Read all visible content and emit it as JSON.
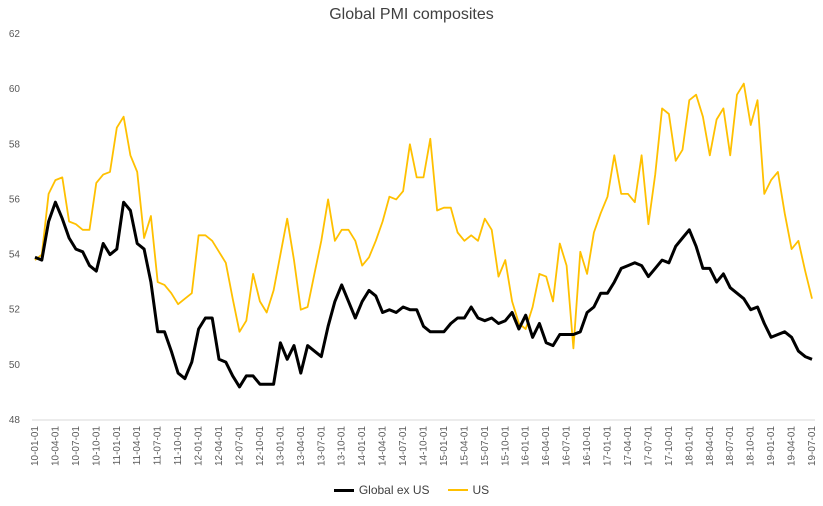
{
  "chart_data": {
    "type": "line",
    "title": "Global PMI composites",
    "xlabel": "",
    "ylabel": "",
    "ylim": [
      48,
      62
    ],
    "yticks": [
      48,
      50,
      52,
      54,
      56,
      58,
      60,
      62
    ],
    "grid": false,
    "legend_position": "bottom",
    "x": [
      "10-01-01",
      "10-02-01",
      "10-03-01",
      "10-04-01",
      "10-05-01",
      "10-06-01",
      "10-07-01",
      "10-08-01",
      "10-09-01",
      "10-10-01",
      "10-11-01",
      "10-12-01",
      "11-01-01",
      "11-02-01",
      "11-03-01",
      "11-04-01",
      "11-05-01",
      "11-06-01",
      "11-07-01",
      "11-08-01",
      "11-09-01",
      "11-10-01",
      "11-11-01",
      "11-12-01",
      "12-01-01",
      "12-02-01",
      "12-03-01",
      "12-04-01",
      "12-05-01",
      "12-06-01",
      "12-07-01",
      "12-08-01",
      "12-09-01",
      "12-10-01",
      "12-11-01",
      "12-12-01",
      "13-01-01",
      "13-02-01",
      "13-03-01",
      "13-04-01",
      "13-05-01",
      "13-06-01",
      "13-07-01",
      "13-08-01",
      "13-09-01",
      "13-10-01",
      "13-11-01",
      "13-12-01",
      "14-01-01",
      "14-02-01",
      "14-03-01",
      "14-04-01",
      "14-05-01",
      "14-06-01",
      "14-07-01",
      "14-08-01",
      "14-09-01",
      "14-10-01",
      "14-11-01",
      "14-12-01",
      "15-01-01",
      "15-02-01",
      "15-03-01",
      "15-04-01",
      "15-05-01",
      "15-06-01",
      "15-07-01",
      "15-08-01",
      "15-09-01",
      "15-10-01",
      "15-11-01",
      "15-12-01",
      "16-01-01",
      "16-02-01",
      "16-03-01",
      "16-04-01",
      "16-05-01",
      "16-06-01",
      "16-07-01",
      "16-08-01",
      "16-09-01",
      "16-10-01",
      "16-11-01",
      "16-12-01",
      "17-01-01",
      "17-02-01",
      "17-03-01",
      "17-04-01",
      "17-05-01",
      "17-06-01",
      "17-07-01",
      "17-08-01",
      "17-09-01",
      "17-10-01",
      "17-11-01",
      "17-12-01",
      "18-01-01",
      "18-02-01",
      "18-03-01",
      "18-04-01",
      "18-05-01",
      "18-06-01",
      "18-07-01",
      "18-08-01",
      "18-09-01",
      "18-10-01",
      "18-11-01",
      "18-12-01",
      "19-01-01",
      "19-02-01",
      "19-03-01",
      "19-04-01",
      "19-05-01",
      "19-06-01",
      "19-07-01"
    ],
    "xtick_labels": [
      "10-01-01",
      "10-04-01",
      "10-07-01",
      "10-10-01",
      "11-01-01",
      "11-04-01",
      "11-07-01",
      "11-10-01",
      "12-01-01",
      "12-04-01",
      "12-07-01",
      "12-10-01",
      "13-01-01",
      "13-04-01",
      "13-07-01",
      "13-10-01",
      "14-01-01",
      "14-04-01",
      "14-07-01",
      "14-10-01",
      "15-01-01",
      "15-04-01",
      "15-07-01",
      "15-10-01",
      "16-01-01",
      "16-04-01",
      "16-07-01",
      "16-10-01",
      "17-01-01",
      "17-04-01",
      "17-07-01",
      "17-10-01",
      "18-01-01",
      "18-04-01",
      "18-07-01",
      "18-10-01",
      "19-01-01",
      "19-04-01",
      "19-07-01"
    ],
    "series": [
      {
        "name": "Global ex US",
        "color": "#000000",
        "values": [
          53.9,
          53.8,
          55.2,
          55.9,
          55.3,
          54.6,
          54.2,
          54.1,
          53.6,
          53.4,
          54.4,
          54.0,
          54.2,
          55.9,
          55.6,
          54.4,
          54.2,
          53.0,
          51.2,
          51.2,
          50.5,
          49.7,
          49.5,
          50.1,
          51.3,
          51.7,
          51.7,
          50.2,
          50.1,
          49.6,
          49.2,
          49.6,
          49.6,
          49.3,
          49.3,
          49.3,
          50.8,
          50.2,
          50.7,
          49.7,
          50.7,
          50.5,
          50.3,
          51.4,
          52.3,
          52.9,
          52.3,
          51.7,
          52.3,
          52.7,
          52.5,
          51.9,
          52.0,
          51.9,
          52.1,
          52.0,
          52.0,
          51.4,
          51.2,
          51.2,
          51.2,
          51.5,
          51.7,
          51.7,
          52.1,
          51.7,
          51.6,
          51.7,
          51.5,
          51.6,
          51.9,
          51.3,
          51.8,
          51.0,
          51.5,
          50.8,
          50.7,
          51.1,
          51.1,
          51.1,
          51.2,
          51.9,
          52.1,
          52.6,
          52.6,
          53.0,
          53.5,
          53.6,
          53.7,
          53.6,
          53.2,
          53.5,
          53.8,
          53.7,
          54.3,
          54.6,
          54.9,
          54.3,
          53.5,
          53.5,
          53.0,
          53.3,
          52.8,
          52.6,
          52.4,
          52.0,
          52.1,
          51.5,
          51.0,
          51.1,
          51.2,
          51.0,
          50.5,
          50.3,
          50.2
        ]
      },
      {
        "name": "US",
        "color": "#ffc000",
        "values": [
          53.8,
          54.0,
          56.2,
          56.7,
          56.8,
          55.2,
          55.1,
          54.9,
          54.9,
          56.6,
          56.9,
          57.0,
          58.6,
          59.0,
          57.6,
          57.0,
          54.6,
          55.4,
          53.0,
          52.9,
          52.6,
          52.2,
          52.4,
          52.6,
          54.7,
          54.7,
          54.5,
          54.1,
          53.7,
          52.4,
          51.2,
          51.6,
          53.3,
          52.3,
          51.9,
          52.7,
          54.0,
          55.3,
          53.8,
          52.0,
          52.1,
          53.3,
          54.5,
          56.0,
          54.5,
          54.9,
          54.9,
          54.5,
          53.6,
          53.9,
          54.5,
          55.2,
          56.1,
          56.0,
          56.3,
          58.0,
          56.8,
          56.8,
          58.2,
          55.6,
          55.7,
          55.7,
          54.8,
          54.5,
          54.7,
          54.5,
          55.3,
          54.9,
          53.2,
          53.8,
          52.3,
          51.5,
          51.3,
          52.1,
          53.3,
          53.2,
          52.3,
          54.4,
          53.6,
          50.6,
          54.1,
          53.3,
          54.8,
          55.5,
          56.1,
          57.6,
          56.2,
          56.2,
          55.9,
          57.6,
          55.1,
          56.9,
          59.3,
          59.1,
          57.4,
          57.8,
          59.6,
          59.8,
          59.0,
          57.6,
          58.9,
          59.3,
          57.6,
          59.8,
          60.2,
          58.7,
          59.6,
          56.2,
          56.7,
          57.0,
          55.5,
          54.2,
          54.5,
          53.4,
          52.4
        ]
      }
    ]
  }
}
